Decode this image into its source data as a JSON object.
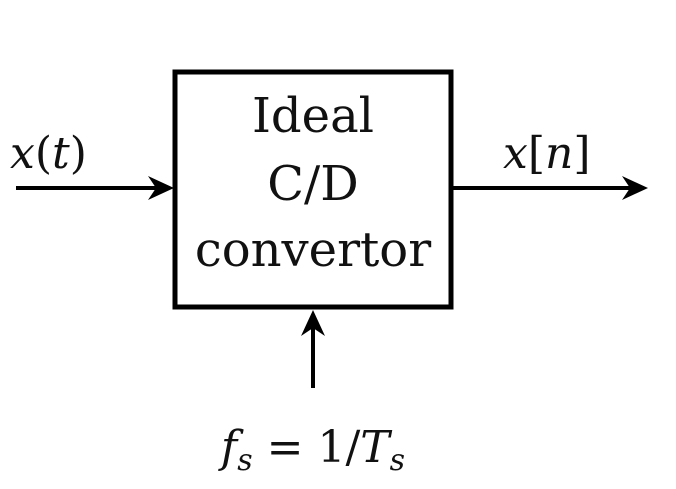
{
  "diagram": {
    "block": {
      "lines": [
        "Ideal",
        "C/D",
        "convertor"
      ]
    },
    "input": {
      "var": "x",
      "open": "(",
      "arg": "t",
      "close": ")"
    },
    "output": {
      "var": "x",
      "open": "[",
      "arg": "n",
      "close": "]"
    },
    "control": {
      "f": "f",
      "f_sub": "s",
      "equals": " = ",
      "numerator": "1",
      "slash": "/",
      "T": "T",
      "T_sub": "s"
    },
    "colors": {
      "stroke": "#000000",
      "text": "#111111",
      "background": "#ffffff"
    }
  }
}
